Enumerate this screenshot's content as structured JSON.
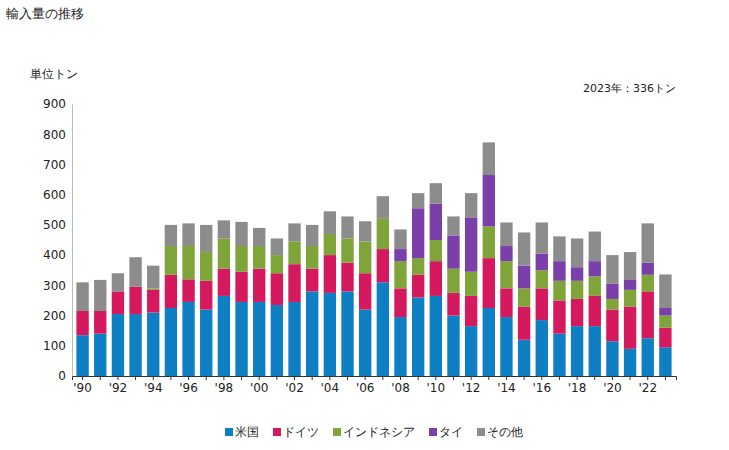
{
  "chart_data": {
    "type": "bar",
    "stacked": true,
    "title": "輸入量の推移",
    "y_label": "単位トン",
    "annotations": [
      "2023年：336トン"
    ],
    "categories": [
      "'90",
      null,
      "'92",
      null,
      "'94",
      null,
      "'96",
      null,
      "'98",
      null,
      "'00",
      null,
      "'02",
      null,
      "'04",
      null,
      "'06",
      null,
      "'08",
      null,
      "'10",
      null,
      "'12",
      null,
      "'14",
      null,
      "'16",
      null,
      "'18",
      null,
      "'20",
      null,
      "'22",
      null
    ],
    "series": [
      {
        "name": "米国",
        "color": "#0f7fc4",
        "values": [
          135,
          140,
          205,
          205,
          210,
          225,
          245,
          220,
          265,
          245,
          245,
          235,
          245,
          280,
          275,
          280,
          220,
          310,
          195,
          260,
          265,
          200,
          165,
          225,
          195,
          120,
          185,
          140,
          165,
          165,
          115,
          90,
          125,
          95
        ]
      },
      {
        "name": "ドイツ",
        "color": "#d4195f",
        "values": [
          80,
          75,
          75,
          90,
          75,
          110,
          75,
          95,
          90,
          100,
          110,
          105,
          125,
          75,
          125,
          95,
          120,
          110,
          95,
          75,
          115,
          75,
          100,
          165,
          95,
          110,
          105,
          110,
          90,
          100,
          105,
          140,
          155,
          65
        ]
      },
      {
        "name": "インドネシア",
        "color": "#7ea43a",
        "values": [
          0,
          0,
          0,
          0,
          5,
          95,
          110,
          95,
          100,
          85,
          75,
          60,
          75,
          75,
          70,
          80,
          105,
          100,
          90,
          55,
          70,
          80,
          80,
          105,
          90,
          60,
          60,
          65,
          60,
          65,
          35,
          55,
          55,
          40
        ]
      },
      {
        "name": "タイ",
        "color": "#7a3fa8",
        "values": [
          0,
          0,
          0,
          0,
          0,
          0,
          0,
          0,
          0,
          0,
          0,
          0,
          0,
          0,
          0,
          0,
          0,
          0,
          40,
          165,
          120,
          110,
          180,
          170,
          50,
          75,
          55,
          65,
          45,
          50,
          50,
          35,
          40,
          25
        ]
      },
      {
        "name": "その他",
        "color": "#8c8c8c",
        "values": [
          95,
          103,
          60,
          98,
          75,
          70,
          75,
          90,
          60,
          80,
          60,
          55,
          60,
          70,
          75,
          73,
          67,
          75,
          65,
          50,
          68,
          63,
          80,
          108,
          78,
          110,
          103,
          82,
          95,
          98,
          95,
          90,
          130,
          111
        ]
      }
    ],
    "ylim": [
      0,
      900
    ],
    "yticks": [
      0,
      100,
      200,
      300,
      400,
      500,
      600,
      700,
      800,
      900
    ],
    "grid": false,
    "legend": "bottom"
  }
}
